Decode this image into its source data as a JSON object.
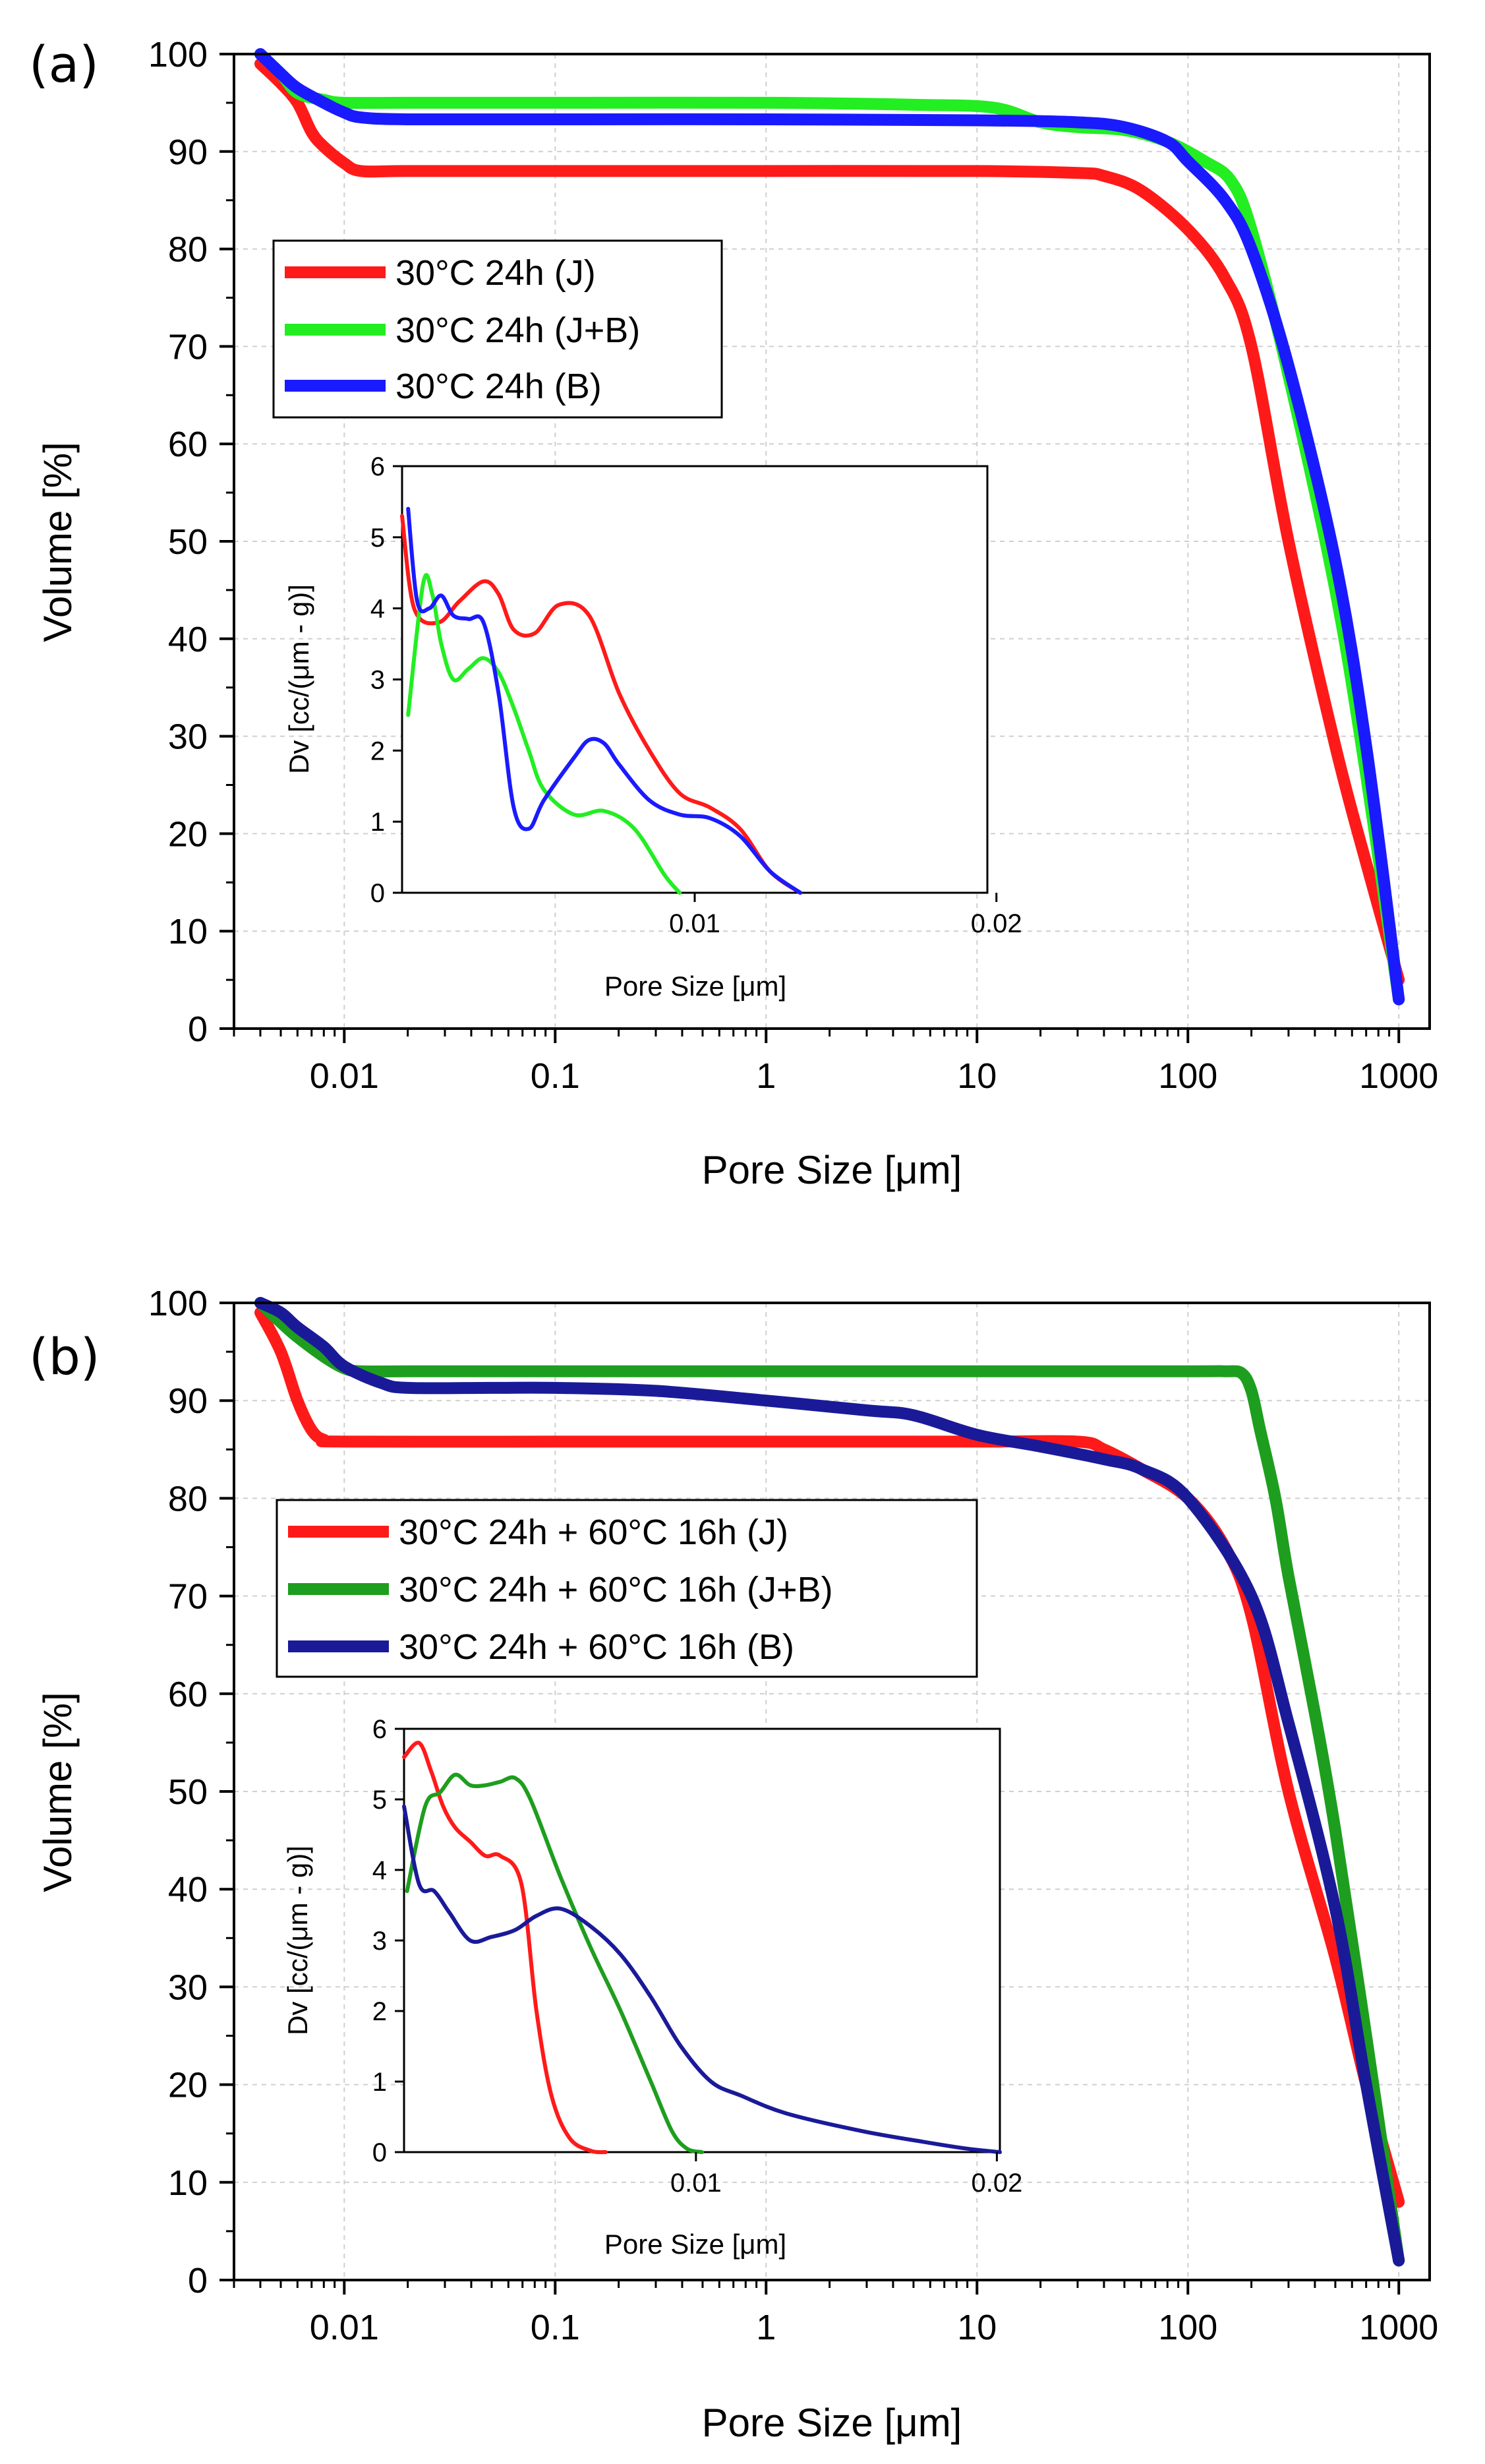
{
  "chart_data": [
    {
      "type": "line",
      "panel_label": "(a)",
      "xlabel": "Pore Size [μm]",
      "ylabel": "Volume [%]",
      "xscale": "log",
      "xlim": [
        0.003,
        1400
      ],
      "ylim": [
        0,
        100
      ],
      "x_ticks": [
        "0.01",
        "0.1",
        "1",
        "10",
        "100",
        "1000"
      ],
      "y_ticks": [
        "0",
        "10",
        "20",
        "30",
        "40",
        "50",
        "60",
        "70",
        "80",
        "90",
        "100"
      ],
      "grid": true,
      "legend_position": "upper-left",
      "series": [
        {
          "name": "30°C 24h (J)",
          "color": "#ff1a1a",
          "x": [
            0.004,
            0.005,
            0.006,
            0.007,
            0.008,
            0.01,
            0.012,
            0.02,
            0.1,
            1,
            10,
            30,
            40,
            60,
            100,
            150,
            200,
            300,
            500,
            700,
            1000
          ],
          "y": [
            99,
            97,
            95,
            92,
            90.5,
            88.8,
            88,
            88,
            88,
            88,
            88,
            87.8,
            87.5,
            86,
            82,
            77,
            70,
            50,
            29,
            17,
            5
          ]
        },
        {
          "name": "30°C 24h (J+B)",
          "color": "#22ee22",
          "x": [
            0.004,
            0.005,
            0.006,
            0.008,
            0.01,
            0.02,
            0.1,
            1,
            5,
            12,
            20,
            30,
            50,
            80,
            120,
            160,
            200,
            300,
            500,
            700,
            1000
          ],
          "y": [
            100,
            98,
            96,
            95.3,
            95,
            95,
            95,
            95,
            94.8,
            94.5,
            93,
            92.5,
            92.2,
            91,
            89,
            87,
            82,
            67,
            45,
            26,
            3
          ]
        },
        {
          "name": "30°C 24h (B)",
          "color": "#1a1aff",
          "x": [
            0.004,
            0.005,
            0.006,
            0.008,
            0.01,
            0.012,
            0.02,
            0.1,
            1,
            10,
            30,
            50,
            80,
            100,
            150,
            200,
            300,
            500,
            700,
            1000
          ],
          "y": [
            100,
            98,
            96.5,
            95,
            94,
            93.5,
            93.3,
            93.3,
            93.3,
            93.2,
            93,
            92.5,
            91,
            89,
            85,
            80,
            68,
            48,
            29,
            3
          ]
        }
      ],
      "inset": {
        "type": "line",
        "xlabel": "Pore Size [μm]",
        "ylabel": "Dv [cc/(μm - g)]",
        "xlim": [
          0.0003,
          0.0197
        ],
        "ylim": [
          0,
          6
        ],
        "x_ticks": [
          "0.01",
          "0.02"
        ],
        "x_tick_values": [
          0.01,
          0.02
        ],
        "y_ticks": [
          "0",
          "1",
          "2",
          "3",
          "4",
          "5",
          "6"
        ],
        "series": [
          {
            "name": "J",
            "color": "#ff1a1a",
            "x": [
              0.0003,
              0.0007,
              0.0015,
              0.0022,
              0.003,
              0.0035,
              0.004,
              0.0047,
              0.0055,
              0.0065,
              0.0075,
              0.0085,
              0.0095,
              0.0105,
              0.0115,
              0.0125,
              0.0135
            ],
            "y": [
              5.3,
              4.0,
              3.8,
              4.1,
              4.38,
              4.2,
              3.7,
              3.65,
              4.05,
              3.9,
              2.8,
              2.0,
              1.4,
              1.2,
              0.9,
              0.3,
              0
            ]
          },
          {
            "name": "J+B",
            "color": "#22ee22",
            "x": [
              0.0005,
              0.001,
              0.0013,
              0.0016,
              0.002,
              0.0025,
              0.003,
              0.0035,
              0.004,
              0.0045,
              0.005,
              0.006,
              0.007,
              0.008,
              0.009,
              0.0095
            ],
            "y": [
              2.5,
              4.35,
              4.2,
              3.5,
              3.0,
              3.15,
              3.3,
              3.1,
              2.6,
              2.0,
              1.45,
              1.1,
              1.15,
              0.9,
              0.25,
              0
            ]
          },
          {
            "name": "B",
            "color": "#1a1aff",
            "x": [
              0.0005,
              0.0008,
              0.0012,
              0.0016,
              0.002,
              0.0025,
              0.003,
              0.0035,
              0.004,
              0.0045,
              0.005,
              0.006,
              0.0065,
              0.007,
              0.0075,
              0.0085,
              0.0095,
              0.0105,
              0.0115,
              0.0125,
              0.0135
            ],
            "y": [
              5.4,
              4.1,
              4.0,
              4.18,
              3.9,
              3.85,
              3.8,
              2.8,
              1.2,
              0.9,
              1.3,
              1.9,
              2.15,
              2.1,
              1.8,
              1.3,
              1.1,
              1.05,
              0.8,
              0.3,
              0
            ]
          }
        ]
      }
    },
    {
      "type": "line",
      "panel_label": "(b)",
      "xlabel": "Pore Size [μm]",
      "ylabel": "Volume [%]",
      "xscale": "log",
      "xlim": [
        0.003,
        1400
      ],
      "ylim": [
        0,
        100
      ],
      "x_ticks": [
        "0.01",
        "0.1",
        "1",
        "10",
        "100",
        "1000"
      ],
      "y_ticks": [
        "0",
        "10",
        "20",
        "30",
        "40",
        "50",
        "60",
        "70",
        "80",
        "90",
        "100"
      ],
      "grid": true,
      "legend_position": "upper-left",
      "series": [
        {
          "name": "30°C 24h + 60°C 16h (J)",
          "color": "#ff1a1a",
          "x": [
            0.004,
            0.005,
            0.006,
            0.007,
            0.008,
            0.01,
            0.1,
            1,
            10,
            30,
            40,
            60,
            100,
            150,
            200,
            300,
            500,
            700,
            1000
          ],
          "y": [
            99,
            95,
            90,
            87,
            86,
            85.8,
            85.8,
            85.8,
            85.8,
            85.8,
            85,
            83,
            80,
            75,
            68,
            50,
            33,
            20,
            8
          ]
        },
        {
          "name": "30°C 24h + 60°C 16h (J+B)",
          "color": "#1e9e1e",
          "x": [
            0.004,
            0.005,
            0.006,
            0.008,
            0.01,
            0.012,
            0.02,
            0.1,
            1,
            10,
            100,
            150,
            180,
            200,
            220,
            260,
            300,
            400,
            500,
            700,
            1000
          ],
          "y": [
            100,
            98,
            96.5,
            94.5,
            93.3,
            93,
            93,
            93,
            93,
            93,
            93,
            93,
            92.8,
            91,
            87,
            80,
            72,
            58,
            46,
            25,
            2
          ]
        },
        {
          "name": "30°C 24h + 60°C 16h (B)",
          "color": "#1a1a99",
          "x": [
            0.004,
            0.005,
            0.006,
            0.008,
            0.01,
            0.015,
            0.02,
            0.05,
            0.1,
            0.3,
            1,
            3,
            5,
            10,
            20,
            40,
            60,
            100,
            200,
            300,
            500,
            700,
            1000
          ],
          "y": [
            100,
            99,
            97.5,
            95.5,
            93.5,
            91.8,
            91.3,
            91.3,
            91.3,
            91,
            90,
            89,
            88.5,
            86.5,
            85.3,
            84,
            83,
            80,
            70,
            57,
            38,
            20,
            2
          ]
        }
      ],
      "inset": {
        "type": "line",
        "xlabel": "Pore Size [μm]",
        "ylabel": "Dv [cc/(μm - g)]",
        "xlim": [
          0.0003,
          0.0201
        ],
        "ylim": [
          0,
          6
        ],
        "x_ticks": [
          "0.01",
          "0.02"
        ],
        "x_tick_values": [
          0.01,
          0.02
        ],
        "y_ticks": [
          "0",
          "1",
          "2",
          "3",
          "4",
          "5",
          "6"
        ],
        "series": [
          {
            "name": "J",
            "color": "#ff1a1a",
            "x": [
              0.0003,
              0.0008,
              0.0012,
              0.0016,
              0.002,
              0.0025,
              0.003,
              0.0035,
              0.0042,
              0.0047,
              0.0052,
              0.0058,
              0.0065,
              0.007
            ],
            "y": [
              5.6,
              5.8,
              5.4,
              4.9,
              4.6,
              4.4,
              4.2,
              4.2,
              3.8,
              2.0,
              0.8,
              0.2,
              0.02,
              0
            ]
          },
          {
            "name": "J+B",
            "color": "#1e9e1e",
            "x": [
              0.0004,
              0.001,
              0.0015,
              0.002,
              0.0025,
              0.003,
              0.0035,
              0.004,
              0.0045,
              0.0055,
              0.0065,
              0.0075,
              0.0085,
              0.0092,
              0.0097,
              0.0102
            ],
            "y": [
              3.7,
              4.9,
              5.1,
              5.35,
              5.2,
              5.2,
              5.25,
              5.3,
              5.0,
              3.9,
              2.9,
              2.0,
              1.0,
              0.3,
              0.05,
              0
            ]
          },
          {
            "name": "B",
            "color": "#1a1a99",
            "x": [
              0.0003,
              0.0008,
              0.0013,
              0.0018,
              0.0025,
              0.0032,
              0.004,
              0.0047,
              0.0055,
              0.0065,
              0.0075,
              0.0085,
              0.0095,
              0.0105,
              0.0115,
              0.013,
              0.0155,
              0.0175,
              0.019,
              0.0201
            ],
            "y": [
              4.9,
              3.8,
              3.7,
              3.4,
              3.0,
              3.05,
              3.15,
              3.35,
              3.45,
              3.2,
              2.8,
              2.2,
              1.5,
              1.0,
              0.8,
              0.55,
              0.3,
              0.15,
              0.05,
              0
            ]
          }
        ]
      }
    }
  ]
}
